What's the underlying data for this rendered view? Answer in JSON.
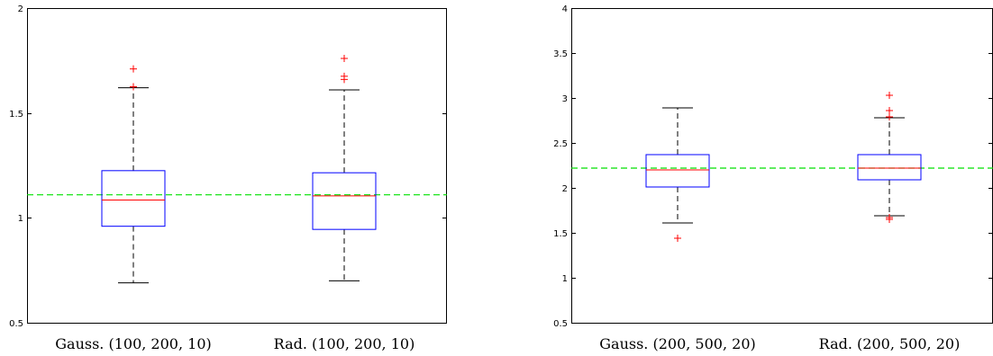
{
  "chart_data": [
    {
      "type": "box",
      "title": "",
      "xlabel": "",
      "ylabel": "",
      "ylim": [
        0.5,
        2
      ],
      "yticks": [
        0.5,
        1,
        1.5,
        2
      ],
      "ytick_labels": [
        "0.5",
        "1",
        "1.5",
        "2"
      ],
      "reference_line": {
        "value": 1.11,
        "style": "dashed",
        "color": "#00e000"
      },
      "categories": [
        "Gauss. (100, 200, 10)",
        "Rad. (100, 200, 10)"
      ],
      "boxes": [
        {
          "category": "Gauss. (100, 200, 10)",
          "whisker_low": 0.69,
          "q1": 0.96,
          "median": 1.085,
          "q3": 1.225,
          "whisker_high": 1.62,
          "outliers": [
            1.625,
            1.71
          ]
        },
        {
          "category": "Rad. (100, 200, 10)",
          "whisker_low": 0.7,
          "q1": 0.945,
          "median": 1.105,
          "q3": 1.215,
          "whisker_high": 1.61,
          "outliers": [
            1.66,
            1.675,
            1.76
          ]
        }
      ]
    },
    {
      "type": "box",
      "title": "",
      "xlabel": "",
      "ylabel": "",
      "ylim": [
        0.5,
        4
      ],
      "yticks": [
        0.5,
        1,
        1.5,
        2,
        2.5,
        3,
        3.5,
        4
      ],
      "ytick_labels": [
        "0.5",
        "1",
        "1.5",
        "2",
        "2.5",
        "3",
        "3.5",
        "4"
      ],
      "reference_line": {
        "value": 2.22,
        "style": "dashed",
        "color": "#00e000"
      },
      "categories": [
        "Gauss. (200, 500, 20)",
        "Rad. (200, 500, 20)"
      ],
      "boxes": [
        {
          "category": "Gauss. (200, 500, 20)",
          "whisker_low": 1.61,
          "q1": 2.01,
          "median": 2.2,
          "q3": 2.37,
          "whisker_high": 2.89,
          "outliers": [
            1.44
          ]
        },
        {
          "category": "Rad. (200, 500, 20)",
          "whisker_low": 1.69,
          "q1": 2.09,
          "median": 2.22,
          "q3": 2.37,
          "whisker_high": 2.78,
          "outliers": [
            1.65,
            1.67,
            2.79,
            2.86,
            3.03
          ]
        }
      ]
    }
  ],
  "colors": {
    "box": "#0000ff",
    "median": "#ff0000",
    "whisker": "#000000",
    "outlier": "#ff0000",
    "reference_line": "#00e000",
    "axes": "#000000"
  }
}
